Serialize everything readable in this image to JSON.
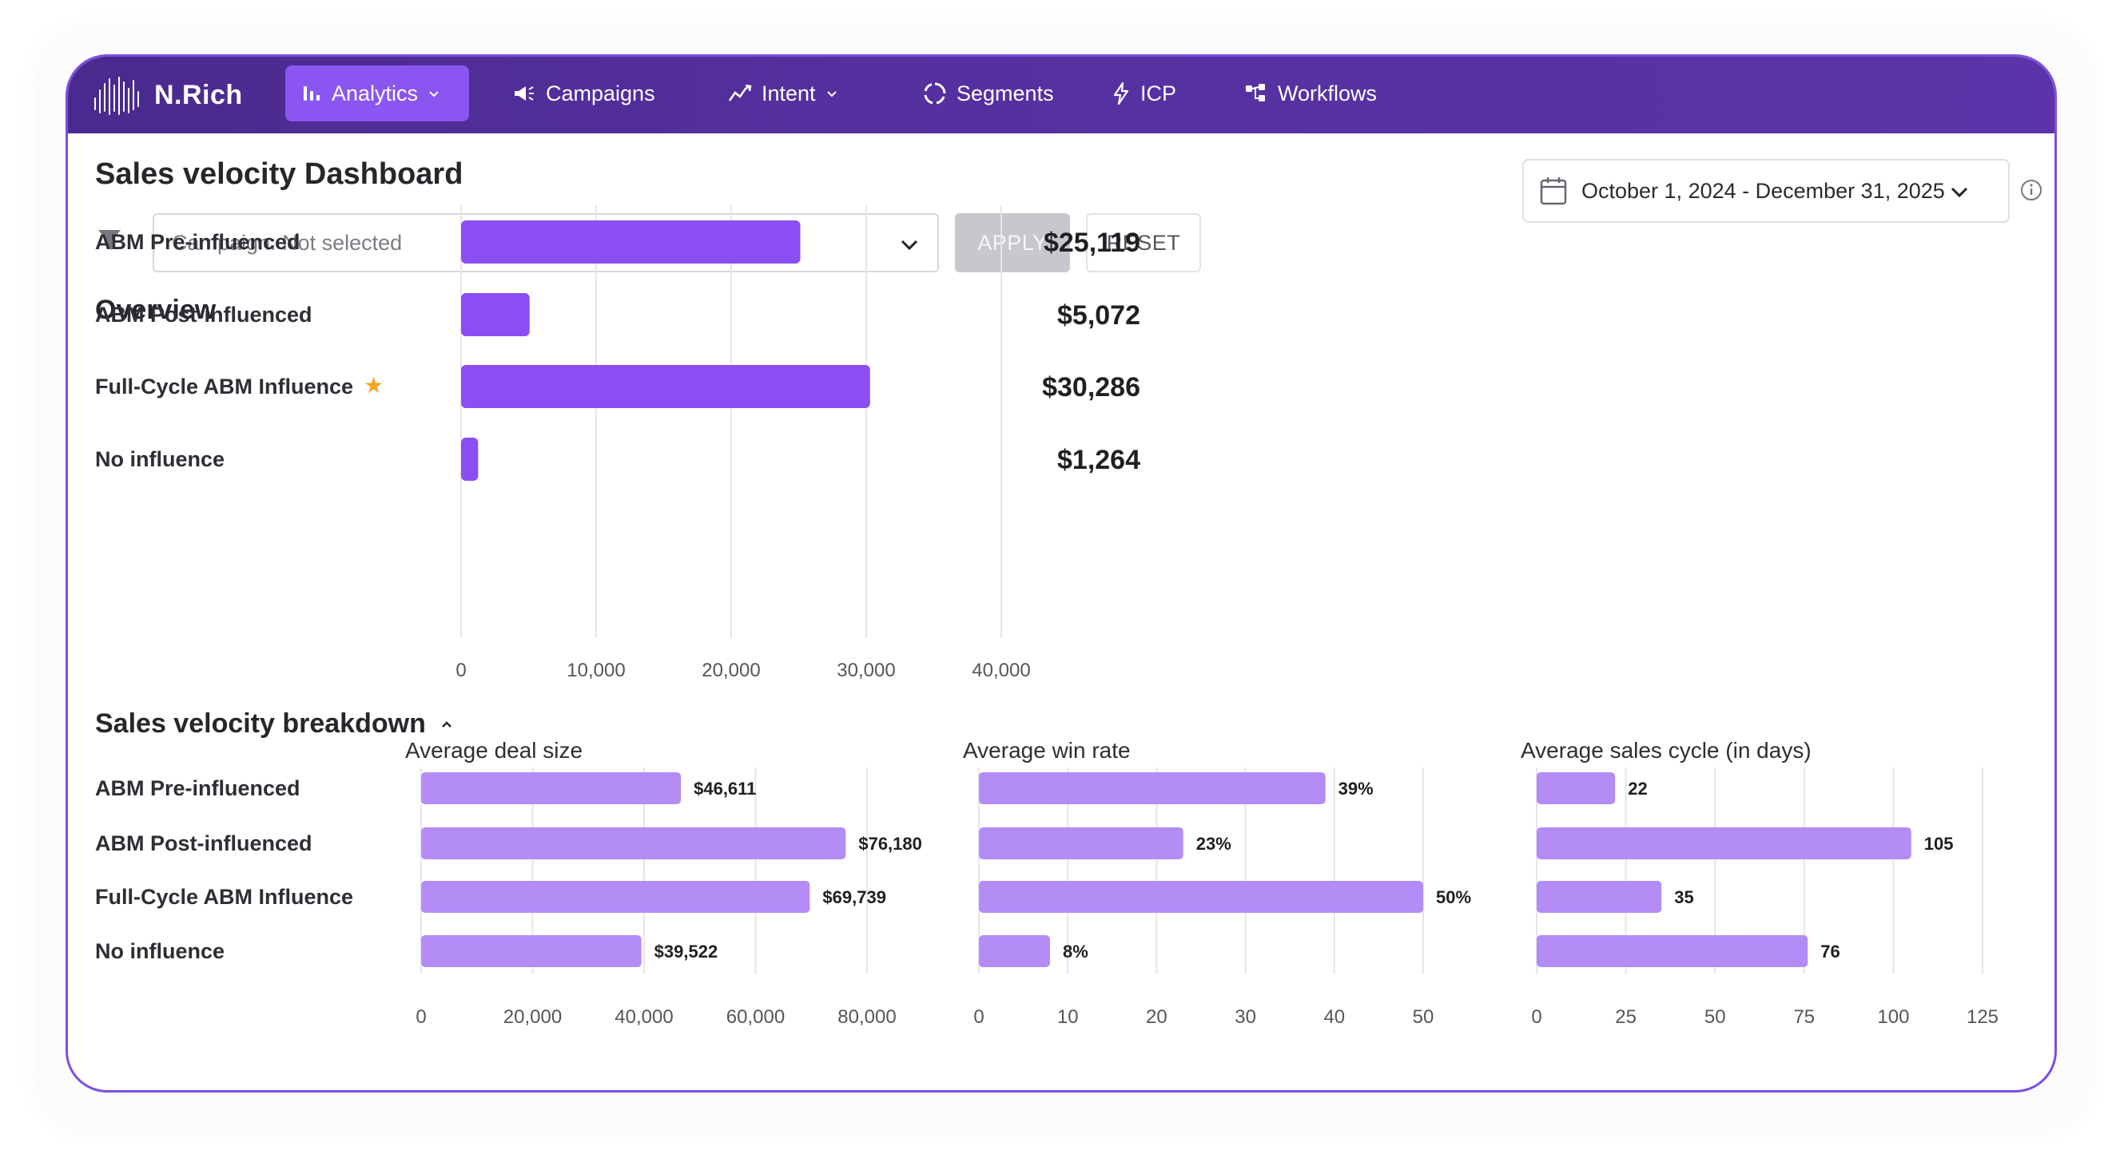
{
  "nav": {
    "brand": "N.Rich",
    "items": [
      {
        "label": "Analytics",
        "icon": "bar-chart-icon",
        "active": true,
        "dropdown": true
      },
      {
        "label": "Campaigns",
        "icon": "megaphone-icon",
        "dropdown": false
      },
      {
        "label": "Intent",
        "icon": "trend-icon",
        "dropdown": true
      },
      {
        "label": "Segments",
        "icon": "segments-icon",
        "dropdown": false
      },
      {
        "label": "ICP",
        "icon": "lightning-icon",
        "dropdown": false
      },
      {
        "label": "Workflows",
        "icon": "workflow-icon",
        "dropdown": false
      }
    ]
  },
  "page": {
    "title": "Sales velocity Dashboard"
  },
  "filters": {
    "campaign_value": "Campaign: Not selected",
    "apply_label": "APPLY",
    "reset_label": "RESET"
  },
  "date_range": {
    "value": "October 1, 2024 - December 31, 2025"
  },
  "overview": {
    "title": "Overview"
  },
  "breakdown": {
    "title": "Sales velocity breakdown"
  },
  "colors": {
    "accent": "#8b4ef3",
    "bar_light": "#b48cf6",
    "nav_bg": "#52309c",
    "star": "#f5a623"
  },
  "chart_data": [
    {
      "type": "bar",
      "orientation": "horizontal",
      "categories": [
        "ABM Pre-influenced",
        "ABM Post-influenced",
        "Full-Cycle ABM Influence",
        "No influence"
      ],
      "values": [
        25119,
        5072,
        30286,
        1264
      ],
      "value_labels": [
        "$25,119",
        "$5,072",
        "$30,286",
        "$1,264"
      ],
      "starred": [
        false,
        false,
        true,
        false
      ],
      "xlim": [
        0,
        40000
      ],
      "xticks": [
        0,
        10000,
        20000,
        30000,
        40000
      ],
      "xtick_labels": [
        "0",
        "10,000",
        "20,000",
        "30,000",
        "40,000"
      ],
      "grid": true
    },
    {
      "type": "bar",
      "orientation": "horizontal",
      "title": "Average deal size",
      "categories": [
        "ABM Pre-influenced",
        "ABM Post-influenced",
        "Full-Cycle ABM Influence",
        "No influence"
      ],
      "values": [
        46611,
        76180,
        69739,
        39522
      ],
      "value_labels": [
        "$46,611",
        "$76,180",
        "$69,739",
        "$39,522"
      ],
      "xlim": [
        0,
        80000
      ],
      "xticks": [
        0,
        20000,
        40000,
        60000,
        80000
      ],
      "xtick_labels": [
        "0",
        "20,000",
        "40,000",
        "60,000",
        "80,000"
      ],
      "grid": true
    },
    {
      "type": "bar",
      "orientation": "horizontal",
      "title": "Average win rate",
      "categories": [
        "ABM Pre-influenced",
        "ABM Post-influenced",
        "Full-Cycle ABM Influence",
        "No influence"
      ],
      "values": [
        39,
        23,
        50,
        8
      ],
      "value_labels": [
        "39%",
        "23%",
        "50%",
        "8%"
      ],
      "xlim": [
        0,
        50
      ],
      "xticks": [
        0,
        10,
        20,
        30,
        40,
        50
      ],
      "xtick_labels": [
        "0",
        "10",
        "20",
        "30",
        "40",
        "50"
      ],
      "grid": true
    },
    {
      "type": "bar",
      "orientation": "horizontal",
      "title": "Average sales cycle (in days)",
      "categories": [
        "ABM Pre-influenced",
        "ABM Post-influenced",
        "Full-Cycle ABM Influence",
        "No influence"
      ],
      "values": [
        22,
        105,
        35,
        76
      ],
      "value_labels": [
        "22",
        "105",
        "35",
        "76"
      ],
      "xlim": [
        0,
        125
      ],
      "xticks": [
        0,
        25,
        50,
        75,
        100,
        125
      ],
      "xtick_labels": [
        "0",
        "25",
        "50",
        "75",
        "100",
        "125"
      ],
      "grid": true
    }
  ]
}
